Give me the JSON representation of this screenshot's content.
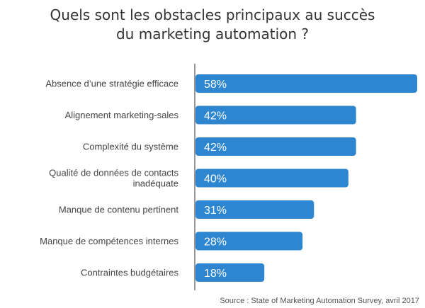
{
  "chart_data": {
    "type": "bar",
    "orientation": "horizontal",
    "title": [
      "Quels sont les obstacles principaux au succès",
      "du marketing automation ?"
    ],
    "categories": [
      [
        "Absence d’une stratégie efficace"
      ],
      [
        "Alignement marketing-sales"
      ],
      [
        "Complexité du système"
      ],
      [
        "Qualité de données de contacts",
        "inadéquate"
      ],
      [
        "Manque de contenu pertinent"
      ],
      [
        "Manque de compétences internes"
      ],
      [
        "Contraintes budgétaires"
      ]
    ],
    "values": [
      58,
      42,
      42,
      40,
      31,
      28,
      18
    ],
    "value_labels": [
      "58%",
      "42%",
      "42%",
      "40%",
      "31%",
      "28%",
      "18%"
    ],
    "xlim": [
      0,
      58
    ],
    "bar_color": "#2f86d0",
    "axis_color": "#333333",
    "source": "Source : State of Marketing Automation Survey, avril 2017"
  }
}
